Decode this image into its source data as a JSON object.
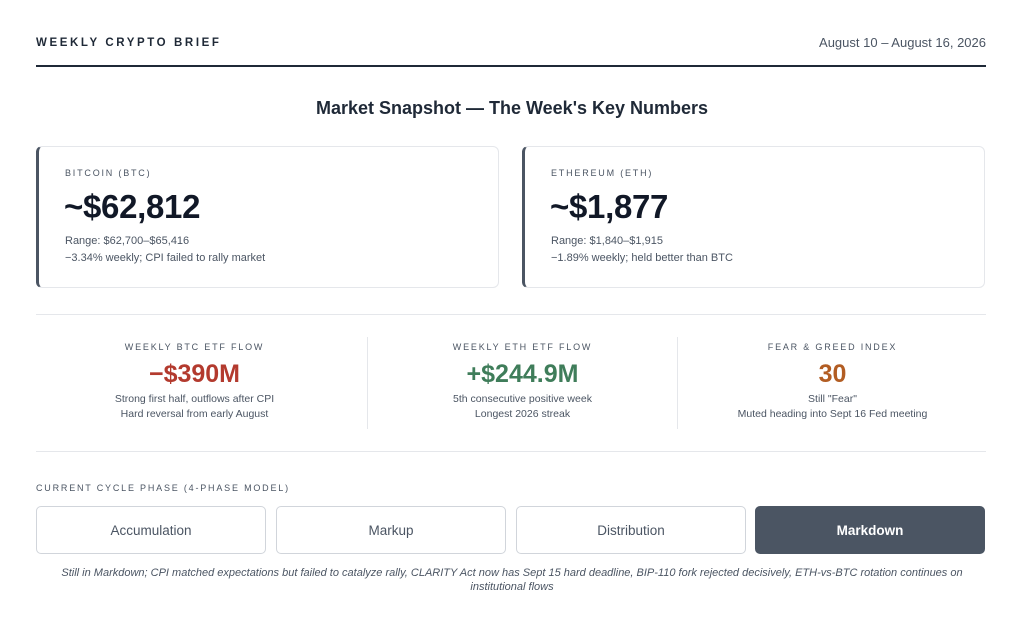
{
  "header": {
    "brand": "WEEKLY CRYPTO BRIEF",
    "date_range": "August 10 – August 16, 2026"
  },
  "title": "Market Snapshot — The Week's Key Numbers",
  "cards": {
    "btc": {
      "label": "BITCOIN (BTC)",
      "price": "~$62,812",
      "range": "Range: $62,700–$65,416",
      "note": "−3.34% weekly; CPI failed to rally market"
    },
    "eth": {
      "label": "ETHEREUM (ETH)",
      "price": "~$1,877",
      "range": "Range: $1,840–$1,915",
      "note": "−1.89% weekly; held better than BTC"
    }
  },
  "stats": {
    "btc_etf": {
      "label": "WEEKLY BTC ETF FLOW",
      "value": "−$390M",
      "note1": "Strong first half, outflows after CPI",
      "note2": "Hard reversal from early August"
    },
    "eth_etf": {
      "label": "WEEKLY ETH ETF FLOW",
      "value": "+$244.9M",
      "note1": "5th consecutive positive week",
      "note2": "Longest 2026 streak"
    },
    "fear_greed": {
      "label": "FEAR & GREED INDEX",
      "value": "30",
      "note1": "Still \"Fear\"",
      "note2": "Muted heading into Sept 16 Fed meeting"
    }
  },
  "cycle": {
    "label": "CURRENT CYCLE PHASE (4-PHASE MODEL)",
    "phases": [
      "Accumulation",
      "Markup",
      "Distribution",
      "Markdown"
    ],
    "active": "Markdown",
    "footnote": "Still in Markdown; CPI matched expectations but failed to catalyze rally, CLARITY Act now has Sept 15 hard deadline, BIP-110 fork rejected decisively, ETH-vs-BTC rotation continues on institutional flows"
  },
  "colors": {
    "negative": "#b33a2e",
    "positive": "#3f7d5a",
    "fear": "#b25d23",
    "active_phase": "#4b5563"
  }
}
